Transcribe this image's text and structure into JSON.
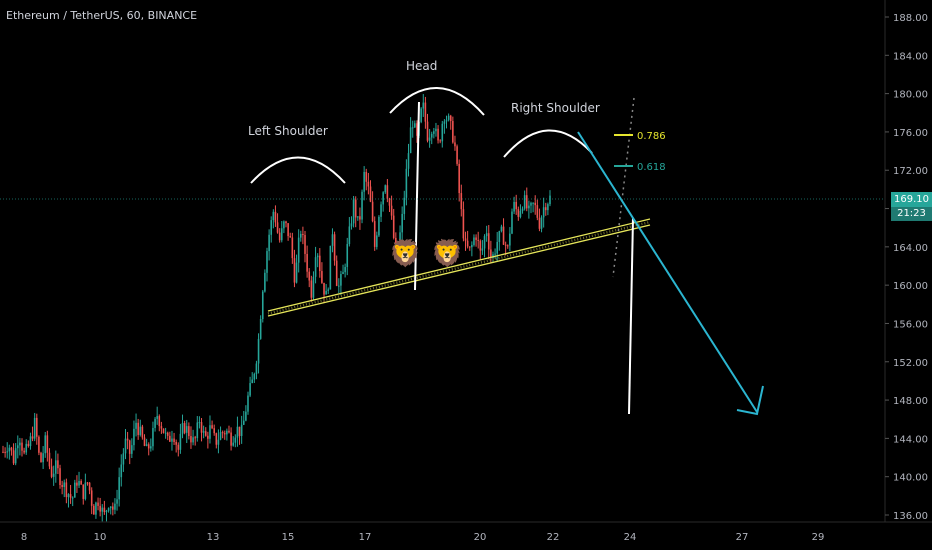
{
  "chart_title": "Ethereum / TetherUS, 60, BINANCE",
  "colors": {
    "background": "#000000",
    "up_candle": "#26a69a",
    "down_candle": "#ef5350",
    "neckline": "#e6e65a",
    "projection_arrow": "#2bb5d0",
    "fib_0786": "#e6e62e",
    "fib_0618": "#26a69a",
    "annotation": "#ffffff"
  },
  "chart_data": {
    "type": "candlestick",
    "title": "Ethereum / TetherUS, 60, BINANCE",
    "y_axis": {
      "ticks": [
        136.0,
        140.0,
        144.0,
        148.0,
        152.0,
        156.0,
        160.0,
        164.0,
        168.0,
        172.0,
        176.0,
        180.0,
        184.0,
        188.0
      ],
      "range": [
        135.3,
        188.9
      ],
      "position": "right"
    },
    "x_axis": {
      "tick_labels": [
        "8",
        "10",
        "13",
        "15",
        "17",
        "20",
        "22",
        "24",
        "27",
        "29"
      ]
    },
    "last_price": "169.10",
    "countdown": "21:23",
    "pattern_labels": [
      "Left Shoulder",
      "Head",
      "Right Shoulder"
    ],
    "fib_levels": [
      {
        "label": "0.786",
        "price": 176.2
      },
      {
        "label": "0.618",
        "price": 173.3
      }
    ],
    "neckline": {
      "start_price": 157.2,
      "end_price": 166.8
    },
    "projection": {
      "from_price": 176.6,
      "to_price": 146.8
    },
    "target_line": {
      "top_price": 167.2,
      "bottom_price": 146.5
    },
    "price_path": [
      142.6,
      143.5,
      141.8,
      144.6,
      142.2,
      143.4,
      145.6,
      141.2,
      143.7,
      140.3,
      141.0,
      139.5,
      138.6,
      137.6,
      139.8,
      138.2,
      139.5,
      136.5,
      137.7,
      135.8,
      137.6,
      136.2,
      140.5,
      143.6,
      142.3,
      145.8,
      144.2,
      142.6,
      143.8,
      146.5,
      145.2,
      143.6,
      144.8,
      142.8,
      145.4,
      144.6,
      143.4,
      146.0,
      143.9,
      145.0,
      143.6,
      144.5,
      144.8,
      144.0,
      145.0,
      144.6,
      148.0,
      150.0,
      153.5,
      160.5,
      165.0,
      168.0,
      164.5,
      166.5,
      165.0,
      160.5,
      166.0,
      163.0,
      159.0,
      164.5,
      160.5,
      158.5,
      166.0,
      159.5,
      161.0,
      164.5,
      168.5,
      166.0,
      171.5,
      169.5,
      164.0,
      168.5,
      171.0,
      167.5,
      163.0,
      166.0,
      172.0,
      177.5,
      175.0,
      179.0,
      175.5,
      177.0,
      174.5,
      178.0,
      177.0,
      175.0,
      169.0,
      164.0,
      163.5,
      165.5,
      163.0,
      166.0,
      162.5,
      164.5,
      165.5,
      163.5,
      168.5,
      167.5,
      169.0,
      167.5,
      168.5,
      166.5,
      168.5,
      169.1
    ]
  },
  "emoji": {
    "lion": "🦁"
  }
}
